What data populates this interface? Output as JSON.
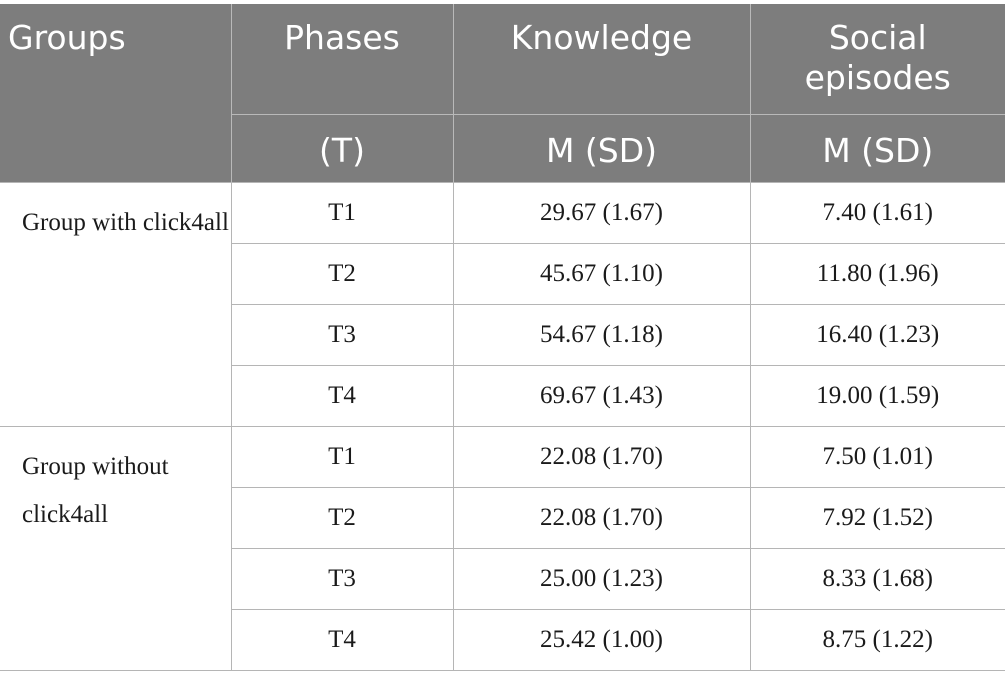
{
  "header": {
    "groups": "Groups",
    "phases": "Phases",
    "knowledge": "Knowledge",
    "social_line1": "Social",
    "social_line2": "episodes",
    "phases_sub": "(T)",
    "knowledge_sub": "M (SD)",
    "social_sub": "M (SD)"
  },
  "groups": [
    {
      "label_line1": "Group with",
      "label_line2": "click4all",
      "rows": [
        {
          "phase": "T1",
          "knowledge": "29.67 (1.67)",
          "social": "7.40 (1.61)"
        },
        {
          "phase": "T2",
          "knowledge": "45.67 (1.10)",
          "social": "11.80 (1.96)"
        },
        {
          "phase": "T3",
          "knowledge": "54.67 (1.18)",
          "social": "16.40 (1.23)"
        },
        {
          "phase": "T4",
          "knowledge": "69.67 (1.43)",
          "social": "19.00 (1.59)"
        }
      ]
    },
    {
      "label_line1": "Group without",
      "label_line2": "click4all",
      "rows": [
        {
          "phase": "T1",
          "knowledge": "22.08 (1.70)",
          "social": "7.50 (1.01)"
        },
        {
          "phase": "T2",
          "knowledge": "22.08 (1.70)",
          "social": "7.92 (1.52)"
        },
        {
          "phase": "T3",
          "knowledge": "25.00 (1.23)",
          "social": "8.33 (1.68)"
        },
        {
          "phase": "T4",
          "knowledge": "25.42 (1.00)",
          "social": "8.75 (1.22)"
        }
      ]
    }
  ]
}
